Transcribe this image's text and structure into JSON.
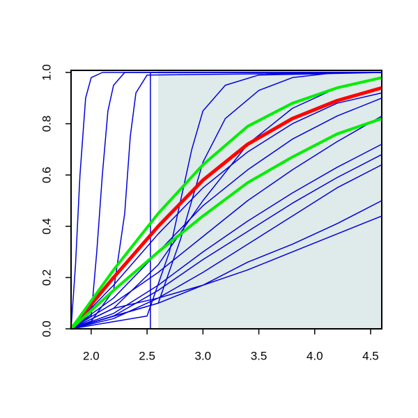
{
  "chart_data": {
    "type": "line",
    "xlim": [
      1.82,
      4.6
    ],
    "ylim": [
      0,
      1
    ],
    "xticks": [
      {
        "value": 2,
        "label": "2.0"
      },
      2.5,
      {
        "value": 3,
        "label": "3.0"
      },
      3.5,
      {
        "value": 4,
        "label": "4.0"
      },
      4.5
    ],
    "yticks": [
      {
        "value": 0,
        "label": "0.0"
      },
      0.2,
      0.4,
      0.6,
      0.8,
      {
        "value": 1,
        "label": "1.0"
      }
    ],
    "shaded_region": {
      "xlim": [
        2.6,
        4.6
      ],
      "color": "#dfeaea"
    },
    "series": [
      {
        "color": "#0000dd",
        "line_width": 1.5,
        "x": [
          1.82,
          1.86,
          1.9,
          1.95,
          2.0,
          2.1,
          4.6
        ],
        "values": [
          0,
          0.25,
          0.6,
          0.9,
          0.98,
          1,
          1
        ]
      },
      {
        "color": "#0000dd",
        "line_width": 1.5,
        "x": [
          1.82,
          2.0,
          2.05,
          2.1,
          2.15,
          2.2,
          2.3,
          4.6
        ],
        "values": [
          0,
          0.05,
          0.3,
          0.6,
          0.85,
          0.95,
          1,
          1
        ]
      },
      {
        "color": "#0000dd",
        "line_width": 1.5,
        "x": [
          1.82,
          2.0,
          2.2,
          2.3,
          2.35,
          2.4,
          2.5,
          4.6
        ],
        "values": [
          0,
          0.03,
          0.15,
          0.45,
          0.75,
          0.92,
          0.99,
          1
        ]
      },
      {
        "color": "#0000dd",
        "line_width": 1.5,
        "x": [
          1.82,
          2.53,
          2.53,
          4.6
        ],
        "values": [
          0,
          0,
          1,
          1
        ]
      },
      {
        "color": "#0000dd",
        "line_width": 1.5,
        "x": [
          1.82,
          2.5,
          2.7,
          2.8,
          2.9,
          3.0,
          3.2,
          3.5,
          4.6
        ],
        "values": [
          0,
          0.05,
          0.3,
          0.5,
          0.7,
          0.85,
          0.95,
          0.99,
          1
        ]
      },
      {
        "color": "#0000dd",
        "line_width": 1.5,
        "x": [
          1.82,
          2.6,
          2.8,
          3.0,
          3.2,
          3.5,
          3.8,
          4.2,
          4.6
        ],
        "values": [
          0,
          0.1,
          0.35,
          0.65,
          0.82,
          0.93,
          0.98,
          1,
          1
        ]
      },
      {
        "color": "#0000dd",
        "line_width": 1.5,
        "x": [
          1.82,
          2.2,
          2.6,
          3.0,
          3.4,
          3.8,
          4.2,
          4.6
        ],
        "values": [
          0,
          0.08,
          0.25,
          0.5,
          0.72,
          0.86,
          0.94,
          0.98
        ]
      },
      {
        "color": "#0000dd",
        "line_width": 1.5,
        "x": [
          1.82,
          2.2,
          2.6,
          3.0,
          3.4,
          3.8,
          4.2,
          4.6
        ],
        "values": [
          0,
          0.17,
          0.37,
          0.55,
          0.69,
          0.8,
          0.88,
          0.92
        ]
      },
      {
        "color": "#0000dd",
        "line_width": 1.5,
        "x": [
          1.82,
          2.2,
          2.6,
          3.0,
          3.4,
          3.8,
          4.2,
          4.6
        ],
        "values": [
          0,
          0.12,
          0.3,
          0.48,
          0.62,
          0.74,
          0.83,
          0.9
        ]
      },
      {
        "color": "#0000dd",
        "line_width": 1.5,
        "x": [
          1.82,
          2.2,
          2.6,
          3.0,
          3.4,
          3.8,
          4.2,
          4.6
        ],
        "values": [
          0,
          0.1,
          0.22,
          0.36,
          0.5,
          0.62,
          0.73,
          0.83
        ]
      },
      {
        "color": "#0000dd",
        "line_width": 1.5,
        "x": [
          1.82,
          2.2,
          2.6,
          3.0,
          3.4,
          3.8,
          4.2,
          4.6
        ],
        "values": [
          0,
          0.06,
          0.17,
          0.3,
          0.42,
          0.53,
          0.63,
          0.72
        ]
      },
      {
        "color": "#0000dd",
        "line_width": 1.5,
        "x": [
          1.82,
          2.2,
          2.6,
          3.0,
          3.4,
          3.8,
          4.2,
          4.6
        ],
        "values": [
          0,
          0.05,
          0.15,
          0.27,
          0.38,
          0.49,
          0.59,
          0.68
        ]
      },
      {
        "color": "#0000dd",
        "line_width": 1.5,
        "x": [
          1.82,
          2.2,
          2.6,
          3.0,
          3.4,
          3.8,
          4.2,
          4.6
        ],
        "values": [
          0,
          0.04,
          0.12,
          0.22,
          0.33,
          0.44,
          0.55,
          0.64
        ]
      },
      {
        "color": "#0000dd",
        "line_width": 1.5,
        "x": [
          1.82,
          2.2,
          2.6,
          3.0,
          3.4,
          3.8,
          4.2,
          4.6
        ],
        "values": [
          0,
          0.05,
          0.1,
          0.17,
          0.26,
          0.33,
          0.41,
          0.5
        ]
      },
      {
        "color": "#0000dd",
        "line_width": 1.5,
        "x": [
          1.82,
          2.2,
          2.6,
          3.0,
          3.4,
          3.8,
          4.2,
          4.6
        ],
        "values": [
          0,
          0.08,
          0.12,
          0.17,
          0.23,
          0.3,
          0.37,
          0.44
        ]
      },
      {
        "color": "#ff0000",
        "line_width": 5,
        "x": [
          1.82,
          2.2,
          2.6,
          3.0,
          3.4,
          3.8,
          4.2,
          4.6
        ],
        "values": [
          0,
          0.2,
          0.4,
          0.58,
          0.72,
          0.82,
          0.89,
          0.94
        ]
      },
      {
        "color": "#00ee00",
        "line_width": 4,
        "x": [
          1.82,
          2.2,
          2.6,
          3.0,
          3.4,
          3.8,
          4.2,
          4.6
        ],
        "values": [
          0,
          0.23,
          0.45,
          0.64,
          0.79,
          0.88,
          0.94,
          0.98
        ]
      },
      {
        "color": "#00ee00",
        "line_width": 4,
        "x": [
          1.82,
          2.2,
          2.6,
          3.0,
          3.4,
          3.8,
          4.2,
          4.6
        ],
        "values": [
          0,
          0.15,
          0.3,
          0.44,
          0.57,
          0.67,
          0.76,
          0.82
        ]
      }
    ]
  }
}
